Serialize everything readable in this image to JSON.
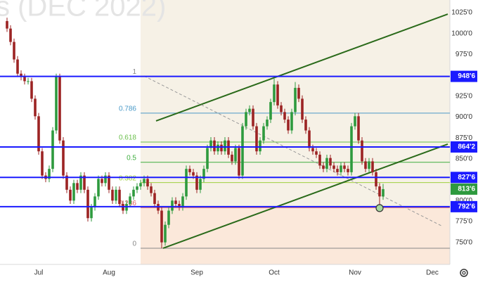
{
  "chart_data": {
    "type": "candlestick",
    "watermark": "s (DEC 2022)",
    "categories": [
      null,
      null,
      null,
      null,
      null,
      null,
      null,
      null,
      null,
      "Jul",
      null,
      null,
      null,
      null,
      null,
      null,
      null,
      null,
      null,
      null,
      null,
      null,
      null,
      null,
      null,
      null,
      null,
      null,
      null,
      "Aug",
      null,
      null,
      null,
      null,
      null,
      null,
      null,
      null,
      null,
      null,
      null,
      null,
      null,
      null,
      null,
      null,
      null,
      null,
      null,
      null,
      null,
      null,
      null,
      null,
      "Sep",
      null,
      null,
      null,
      null,
      null,
      null,
      null,
      null,
      null,
      null,
      null,
      null,
      null,
      null,
      null,
      null,
      null,
      null,
      null,
      null,
      null,
      "Oct",
      null,
      null,
      null,
      null,
      null,
      null,
      null,
      null,
      null,
      null,
      null,
      null,
      null,
      null,
      null,
      null,
      null,
      null,
      null,
      null,
      null,
      null,
      "Nov",
      null,
      null,
      null,
      null,
      null,
      null,
      null,
      null,
      null,
      null,
      null,
      null,
      null,
      null,
      null,
      null,
      null,
      null,
      null,
      null,
      null,
      "Dec"
    ],
    "open": [
      1015,
      1006,
      990,
      969,
      952,
      948,
      943,
      943,
      922,
      901,
      859,
      830,
      826,
      838,
      884,
      948,
      872,
      830,
      813,
      800,
      821,
      813,
      830,
      813,
      779,
      792,
      805,
      826,
      821,
      830,
      813,
      800,
      813,
      796,
      788,
      796,
      805,
      813,
      817,
      821,
      826,
      817,
      809,
      796,
      788,
      750,
      771,
      788,
      800,
      796,
      792,
      805,
      838,
      834,
      830,
      813,
      826,
      838,
      863,
      872,
      859,
      867,
      859,
      872,
      855,
      847,
      863,
      830,
      889,
      906,
      910,
      889,
      859,
      872,
      889,
      897,
      918,
      939,
      914,
      906,
      897,
      884,
      906,
      935,
      922,
      897,
      884,
      863,
      859,
      855,
      842,
      838,
      851,
      842,
      838,
      834,
      842,
      838,
      834,
      889,
      901,
      872,
      847,
      838,
      847,
      834,
      817,
      805,
      null,
      null,
      null,
      null,
      null,
      null,
      null,
      null,
      null,
      null,
      null,
      null,
      null,
      null
    ],
    "high": [
      1019,
      1010,
      994,
      973,
      956,
      952,
      947,
      947,
      926,
      905,
      863,
      834,
      842,
      888,
      952,
      952,
      876,
      834,
      817,
      825,
      825,
      834,
      834,
      817,
      796,
      809,
      830,
      830,
      834,
      834,
      817,
      817,
      817,
      800,
      800,
      809,
      817,
      821,
      825,
      830,
      830,
      821,
      813,
      800,
      792,
      775,
      792,
      804,
      804,
      800,
      809,
      842,
      842,
      838,
      834,
      830,
      842,
      867,
      876,
      876,
      871,
      871,
      876,
      876,
      859,
      867,
      867,
      893,
      910,
      914,
      914,
      893,
      876,
      893,
      901,
      922,
      946,
      943,
      918,
      910,
      901,
      910,
      942,
      939,
      926,
      901,
      888,
      867,
      863,
      859,
      846,
      855,
      855,
      846,
      842,
      846,
      846,
      842,
      893,
      905,
      905,
      876,
      851,
      851,
      851,
      838,
      821,
      820,
      null,
      null,
      null,
      null,
      null,
      null,
      null,
      null,
      null,
      null,
      null,
      null,
      null,
      null
    ],
    "low": [
      1002,
      986,
      965,
      948,
      944,
      939,
      939,
      918,
      897,
      855,
      826,
      822,
      822,
      834,
      880,
      868,
      826,
      809,
      796,
      796,
      809,
      809,
      809,
      775,
      775,
      788,
      801,
      817,
      817,
      809,
      796,
      796,
      792,
      784,
      784,
      792,
      801,
      809,
      813,
      817,
      813,
      805,
      792,
      784,
      743,
      746,
      767,
      784,
      792,
      788,
      788,
      801,
      830,
      826,
      809,
      809,
      822,
      834,
      859,
      855,
      855,
      855,
      855,
      851,
      843,
      843,
      826,
      826,
      885,
      902,
      885,
      855,
      855,
      868,
      885,
      893,
      914,
      910,
      902,
      893,
      880,
      880,
      902,
      918,
      893,
      880,
      859,
      855,
      851,
      838,
      834,
      834,
      838,
      834,
      830,
      830,
      834,
      830,
      830,
      885,
      868,
      843,
      834,
      834,
      830,
      813,
      793,
      801,
      null,
      null,
      null,
      null,
      null,
      null,
      null,
      null,
      null,
      null,
      null,
      null,
      null,
      null
    ],
    "close": [
      1006,
      990,
      969,
      952,
      948,
      943,
      943,
      922,
      901,
      859,
      830,
      826,
      838,
      884,
      948,
      872,
      830,
      813,
      800,
      821,
      813,
      830,
      813,
      779,
      792,
      805,
      826,
      821,
      830,
      813,
      800,
      813,
      796,
      788,
      796,
      805,
      813,
      817,
      821,
      826,
      817,
      809,
      796,
      788,
      750,
      771,
      788,
      800,
      796,
      792,
      805,
      838,
      834,
      830,
      813,
      826,
      838,
      863,
      872,
      859,
      867,
      859,
      872,
      855,
      847,
      863,
      830,
      889,
      906,
      910,
      889,
      859,
      872,
      889,
      897,
      918,
      939,
      914,
      906,
      897,
      884,
      906,
      935,
      922,
      897,
      884,
      863,
      859,
      855,
      842,
      838,
      851,
      842,
      838,
      834,
      842,
      838,
      834,
      889,
      901,
      872,
      847,
      838,
      847,
      834,
      817,
      805,
      813.75,
      null,
      null,
      null,
      null,
      null,
      null,
      null,
      null,
      null,
      null,
      null,
      null,
      null,
      null
    ],
    "up_color": "#2e9a3e",
    "down_color": "#9c2424",
    "xlim": [
      -2,
      126
    ],
    "ylim": [
      723.6,
      1040.2
    ],
    "yticks": [
      {
        "value": 1025,
        "label": "1025'0"
      },
      {
        "value": 1000,
        "label": "1000'0"
      },
      {
        "value": 975,
        "label": "975'0"
      },
      {
        "value": 925,
        "label": "925'0"
      },
      {
        "value": 900,
        "label": "900'0"
      },
      {
        "value": 875,
        "label": "875'0"
      },
      {
        "value": 850,
        "label": "850'0"
      },
      {
        "value": 800,
        "label": "800'0"
      },
      {
        "value": 775,
        "label": "775'0"
      },
      {
        "value": 750,
        "label": "750'0"
      }
    ],
    "levels": [
      {
        "value": 948.75,
        "label": "948'6"
      },
      {
        "value": 864.25,
        "label": "864'2"
      },
      {
        "value": 827.75,
        "label": "827'6"
      },
      {
        "value": 792.75,
        "label": "792'6"
      }
    ],
    "level_color": "#1a1aff",
    "last_price": {
      "value": 813.75,
      "label": "813'6"
    },
    "fib": {
      "start": 38,
      "high": 948.75,
      "low": 743,
      "levels": [
        {
          "value": 1,
          "label": "1",
          "color": "#888888"
        },
        {
          "value": 0.786,
          "label": "0.786",
          "color": "#4a9ac8"
        },
        {
          "value": 0.618,
          "label": "0.618",
          "color": "#6abf4b"
        },
        {
          "value": 0.5,
          "label": "0.5",
          "color": "#3fae3f"
        },
        {
          "value": 0.382,
          "label": "0.382",
          "color": "#9fcf3f"
        },
        {
          "value": 0.236,
          "label": "0.236",
          "color": "#e06060"
        },
        {
          "value": 0,
          "label": "0",
          "color": "#888888"
        }
      ]
    },
    "trendlines": [
      {
        "from": [
          42.4,
          895.4
        ],
        "to": [
          125.4,
          1023.3
        ],
        "color": "#2a6a1a",
        "dashed": false
      },
      {
        "from": [
          44.4,
          743
        ],
        "to": [
          125.4,
          867.6
        ],
        "color": "#2a6a1a",
        "dashed": false
      },
      {
        "from": [
          39,
          949.2
        ],
        "to": [
          124,
          769
        ],
        "color": "#999999",
        "dashed": true
      }
    ]
  }
}
